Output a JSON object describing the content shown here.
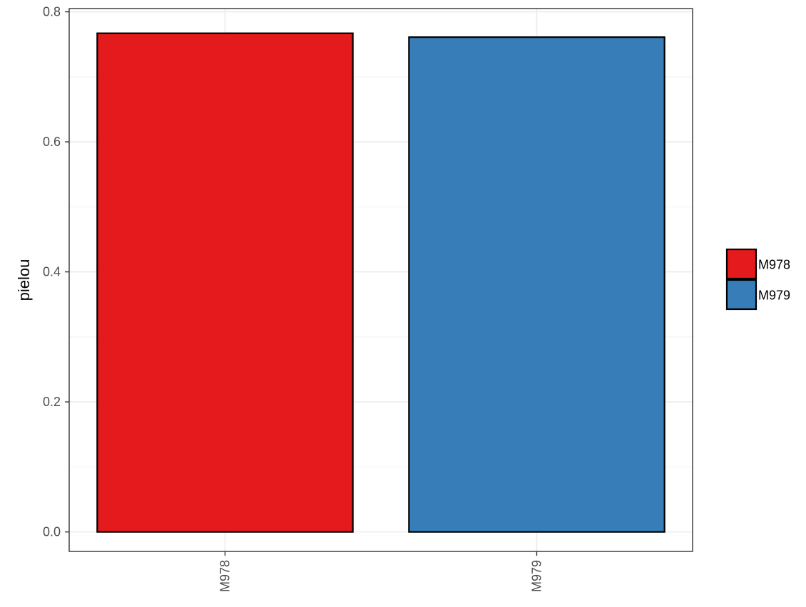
{
  "chart_data": {
    "type": "bar",
    "categories": [
      "M978",
      "M979"
    ],
    "values": [
      0.767,
      0.761
    ],
    "colors": [
      "#E41A1C",
      "#377EB8"
    ],
    "title": "",
    "xlabel": "",
    "ylabel": "pielou",
    "ylim": [
      -0.03,
      0.805
    ],
    "yticks": [
      0.0,
      0.2,
      0.4,
      0.6,
      0.8
    ],
    "ytick_labels": [
      "0.0",
      "0.2",
      "0.4",
      "0.6",
      "0.8"
    ],
    "grid": true,
    "legend": {
      "position": "right",
      "entries": [
        {
          "label": "M978",
          "color": "#E41A1C"
        },
        {
          "label": "M979",
          "color": "#377EB8"
        }
      ]
    }
  }
}
